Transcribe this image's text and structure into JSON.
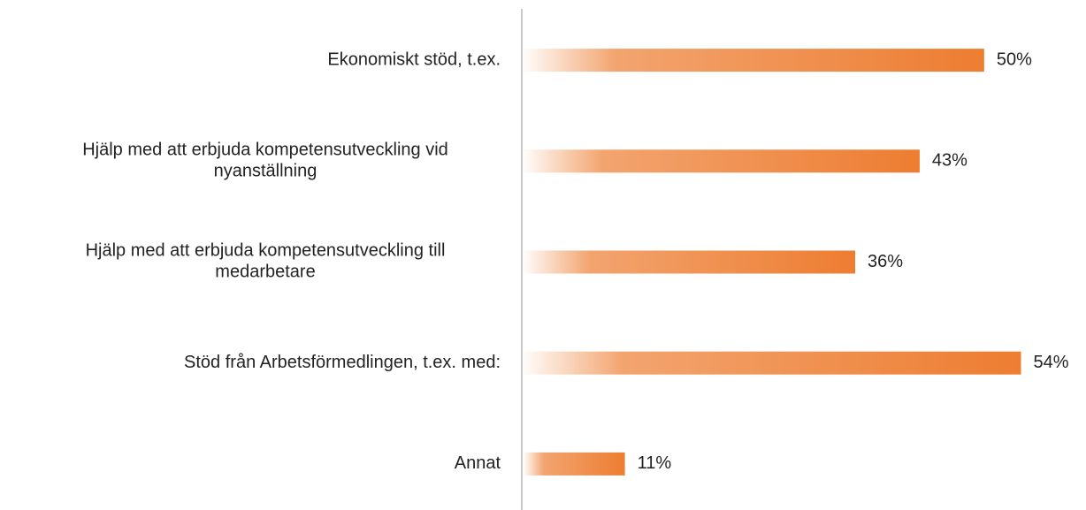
{
  "chart_data": {
    "type": "barh",
    "categories": [
      "Ekonomiskt stöd, t.ex.",
      "Hjälp med att erbjuda kompetensutveckling vid\nnyanställning",
      "Hjälp med att erbjuda kompetensutveckling till\nmedarbetare",
      "Stöd från Arbetsförmedlingen, t.ex. med:",
      "Annat"
    ],
    "values": [
      50,
      43,
      36,
      54,
      11
    ],
    "value_labels": [
      "50%",
      "43%",
      "36%",
      "54%",
      "11%"
    ],
    "color": "#ed7d31",
    "xlim": [
      0,
      60
    ]
  }
}
